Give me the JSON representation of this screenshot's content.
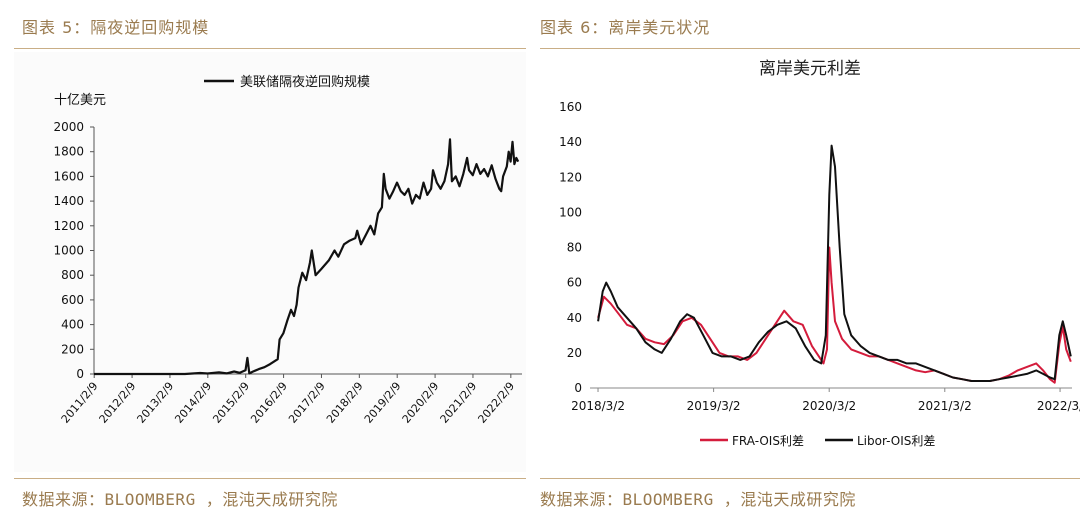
{
  "left_panel": {
    "figure_title": "图表 5：隔夜逆回购规模",
    "source": "数据来源：BLOOMBERG ，混沌天成研究院"
  },
  "right_panel": {
    "figure_title": "图表 6：离岸美元状况",
    "source": "数据来源：BLOOMBERG ，混沌天成研究院"
  },
  "colors": {
    "accent": "#9a7b4f",
    "rule": "#c9ae86",
    "fra_line": "#d41c3c",
    "libor_line": "#111111",
    "rrp_line": "#111111"
  },
  "chart_data": [
    {
      "type": "line",
      "title": "",
      "ylabel": "十亿美元",
      "ylim": [
        0,
        2000
      ],
      "yticks": [
        "0",
        "200",
        "400",
        "600",
        "800",
        "1000",
        "1200",
        "1400",
        "1600",
        "1800",
        "2000"
      ],
      "xticks": [
        "2011/2/9",
        "2012/2/9",
        "2013/2/9",
        "2014/2/9",
        "2015/2/9",
        "2016/2/9",
        "2017/2/9",
        "2018/2/9",
        "2019/2/9",
        "2020/2/9",
        "2021/2/9",
        "2022/2/9"
      ],
      "legend_position": "top-right",
      "grid": false,
      "series": [
        {
          "name": "美联储隔夜逆回购规模",
          "points": [
            [
              2011.1,
              0
            ],
            [
              2013.5,
              0
            ],
            [
              2013.9,
              8
            ],
            [
              2014.1,
              4
            ],
            [
              2014.4,
              14
            ],
            [
              2014.6,
              5
            ],
            [
              2014.8,
              20
            ],
            [
              2014.95,
              10
            ],
            [
              2015.1,
              30
            ],
            [
              2015.15,
              130
            ],
            [
              2015.2,
              5
            ],
            [
              2015.3,
              20
            ],
            [
              2015.45,
              40
            ],
            [
              2015.6,
              55
            ],
            [
              2015.75,
              80
            ],
            [
              2015.95,
              120
            ],
            [
              2016.0,
              280
            ],
            [
              2016.1,
              330
            ],
            [
              2016.2,
              430
            ],
            [
              2016.3,
              520
            ],
            [
              2016.38,
              470
            ],
            [
              2016.45,
              560
            ],
            [
              2016.5,
              700
            ],
            [
              2016.6,
              820
            ],
            [
              2016.7,
              760
            ],
            [
              2016.8,
              900
            ],
            [
              2016.85,
              1000
            ],
            [
              2016.95,
              800
            ],
            [
              2017.1,
              850
            ],
            [
              2017.3,
              920
            ],
            [
              2017.45,
              1000
            ],
            [
              2017.55,
              950
            ],
            [
              2017.7,
              1050
            ],
            [
              2017.85,
              1080
            ],
            [
              2018.0,
              1100
            ],
            [
              2018.05,
              1160
            ],
            [
              2018.15,
              1050
            ],
            [
              2018.3,
              1140
            ],
            [
              2018.4,
              1200
            ],
            [
              2018.5,
              1130
            ],
            [
              2018.6,
              1300
            ],
            [
              2018.7,
              1350
            ],
            [
              2018.75,
              1620
            ],
            [
              2018.8,
              1500
            ],
            [
              2018.9,
              1420
            ],
            [
              2019.0,
              1480
            ],
            [
              2019.1,
              1550
            ],
            [
              2019.2,
              1480
            ],
            [
              2019.3,
              1450
            ],
            [
              2019.4,
              1500
            ],
            [
              2019.5,
              1380
            ],
            [
              2019.6,
              1450
            ],
            [
              2019.7,
              1420
            ],
            [
              2019.8,
              1550
            ],
            [
              2019.9,
              1450
            ],
            [
              2020.0,
              1500
            ],
            [
              2020.05,
              1650
            ],
            [
              2020.15,
              1550
            ],
            [
              2020.25,
              1500
            ],
            [
              2020.35,
              1560
            ],
            [
              2020.45,
              1700
            ],
            [
              2020.5,
              1900
            ],
            [
              2020.55,
              1560
            ],
            [
              2020.65,
              1600
            ],
            [
              2020.75,
              1520
            ],
            [
              2020.85,
              1620
            ],
            [
              2020.95,
              1750
            ],
            [
              2021.0,
              1650
            ],
            [
              2021.1,
              1610
            ],
            [
              2021.2,
              1700
            ],
            [
              2021.3,
              1620
            ],
            [
              2021.4,
              1660
            ],
            [
              2021.5,
              1600
            ],
            [
              2021.6,
              1690
            ],
            [
              2021.7,
              1580
            ],
            [
              2021.8,
              1500
            ],
            [
              2021.85,
              1480
            ],
            [
              2021.9,
              1600
            ],
            [
              2022.0,
              1680
            ],
            [
              2022.05,
              1800
            ],
            [
              2022.1,
              1720
            ],
            [
              2022.15,
              1880
            ],
            [
              2022.2,
              1700
            ],
            [
              2022.25,
              1750
            ],
            [
              2022.3,
              1720
            ]
          ]
        }
      ]
    },
    {
      "type": "line",
      "title": "离岸美元利差",
      "ylim": [
        0,
        160
      ],
      "yticks": [
        "0",
        "20",
        "40",
        "60",
        "80",
        "100",
        "120",
        "140",
        "160"
      ],
      "xticks": [
        "2018/3/2",
        "2019/3/2",
        "2020/3/2",
        "2021/3/2",
        "2022/3/"
      ],
      "legend_position": "bottom",
      "grid": false,
      "series": [
        {
          "name": "FRA-OIS利差",
          "points": [
            [
              2018.17,
              40
            ],
            [
              2018.22,
              52
            ],
            [
              2018.28,
              48
            ],
            [
              2018.35,
              42
            ],
            [
              2018.42,
              36
            ],
            [
              2018.5,
              34
            ],
            [
              2018.58,
              28
            ],
            [
              2018.66,
              26
            ],
            [
              2018.74,
              25
            ],
            [
              2018.82,
              30
            ],
            [
              2018.9,
              38
            ],
            [
              2018.98,
              40
            ],
            [
              2019.06,
              36
            ],
            [
              2019.14,
              28
            ],
            [
              2019.22,
              20
            ],
            [
              2019.3,
              18
            ],
            [
              2019.38,
              18
            ],
            [
              2019.46,
              16
            ],
            [
              2019.54,
              20
            ],
            [
              2019.62,
              28
            ],
            [
              2019.7,
              36
            ],
            [
              2019.78,
              44
            ],
            [
              2019.86,
              38
            ],
            [
              2019.94,
              36
            ],
            [
              2020.02,
              24
            ],
            [
              2020.08,
              18
            ],
            [
              2020.12,
              14
            ],
            [
              2020.15,
              22
            ],
            [
              2020.17,
              80
            ],
            [
              2020.19,
              60
            ],
            [
              2020.22,
              38
            ],
            [
              2020.28,
              28
            ],
            [
              2020.36,
              22
            ],
            [
              2020.44,
              20
            ],
            [
              2020.52,
              18
            ],
            [
              2020.6,
              18
            ],
            [
              2020.68,
              16
            ],
            [
              2020.76,
              14
            ],
            [
              2020.84,
              12
            ],
            [
              2020.92,
              10
            ],
            [
              2021.0,
              9
            ],
            [
              2021.08,
              10
            ],
            [
              2021.16,
              8
            ],
            [
              2021.24,
              6
            ],
            [
              2021.32,
              5
            ],
            [
              2021.4,
              4
            ],
            [
              2021.48,
              4
            ],
            [
              2021.56,
              4
            ],
            [
              2021.64,
              5
            ],
            [
              2021.72,
              7
            ],
            [
              2021.8,
              10
            ],
            [
              2021.88,
              12
            ],
            [
              2021.96,
              14
            ],
            [
              2022.02,
              10
            ],
            [
              2022.08,
              5
            ],
            [
              2022.12,
              3
            ],
            [
              2022.16,
              25
            ],
            [
              2022.19,
              35
            ],
            [
              2022.22,
              22
            ],
            [
              2022.26,
              15
            ]
          ]
        },
        {
          "name": "Libor-OIS利差",
          "points": [
            [
              2018.17,
              38
            ],
            [
              2018.21,
              55
            ],
            [
              2018.24,
              60
            ],
            [
              2018.28,
              55
            ],
            [
              2018.34,
              46
            ],
            [
              2018.42,
              40
            ],
            [
              2018.5,
              34
            ],
            [
              2018.58,
              26
            ],
            [
              2018.66,
              22
            ],
            [
              2018.72,
              20
            ],
            [
              2018.8,
              28
            ],
            [
              2018.88,
              38
            ],
            [
              2018.94,
              42
            ],
            [
              2019.0,
              40
            ],
            [
              2019.08,
              30
            ],
            [
              2019.16,
              20
            ],
            [
              2019.24,
              18
            ],
            [
              2019.32,
              18
            ],
            [
              2019.4,
              16
            ],
            [
              2019.48,
              18
            ],
            [
              2019.56,
              26
            ],
            [
              2019.64,
              32
            ],
            [
              2019.72,
              36
            ],
            [
              2019.8,
              38
            ],
            [
              2019.88,
              34
            ],
            [
              2019.96,
              24
            ],
            [
              2020.04,
              16
            ],
            [
              2020.1,
              14
            ],
            [
              2020.14,
              30
            ],
            [
              2020.17,
              110
            ],
            [
              2020.19,
              138
            ],
            [
              2020.22,
              126
            ],
            [
              2020.26,
              80
            ],
            [
              2020.3,
              42
            ],
            [
              2020.36,
              30
            ],
            [
              2020.44,
              24
            ],
            [
              2020.52,
              20
            ],
            [
              2020.6,
              18
            ],
            [
              2020.68,
              16
            ],
            [
              2020.76,
              16
            ],
            [
              2020.84,
              14
            ],
            [
              2020.92,
              14
            ],
            [
              2021.0,
              12
            ],
            [
              2021.08,
              10
            ],
            [
              2021.16,
              8
            ],
            [
              2021.24,
              6
            ],
            [
              2021.32,
              5
            ],
            [
              2021.4,
              4
            ],
            [
              2021.48,
              4
            ],
            [
              2021.56,
              4
            ],
            [
              2021.64,
              5
            ],
            [
              2021.72,
              6
            ],
            [
              2021.8,
              7
            ],
            [
              2021.88,
              8
            ],
            [
              2021.96,
              10
            ],
            [
              2022.02,
              8
            ],
            [
              2022.08,
              6
            ],
            [
              2022.12,
              5
            ],
            [
              2022.16,
              30
            ],
            [
              2022.19,
              38
            ],
            [
              2022.22,
              30
            ],
            [
              2022.26,
              18
            ]
          ]
        }
      ]
    }
  ]
}
